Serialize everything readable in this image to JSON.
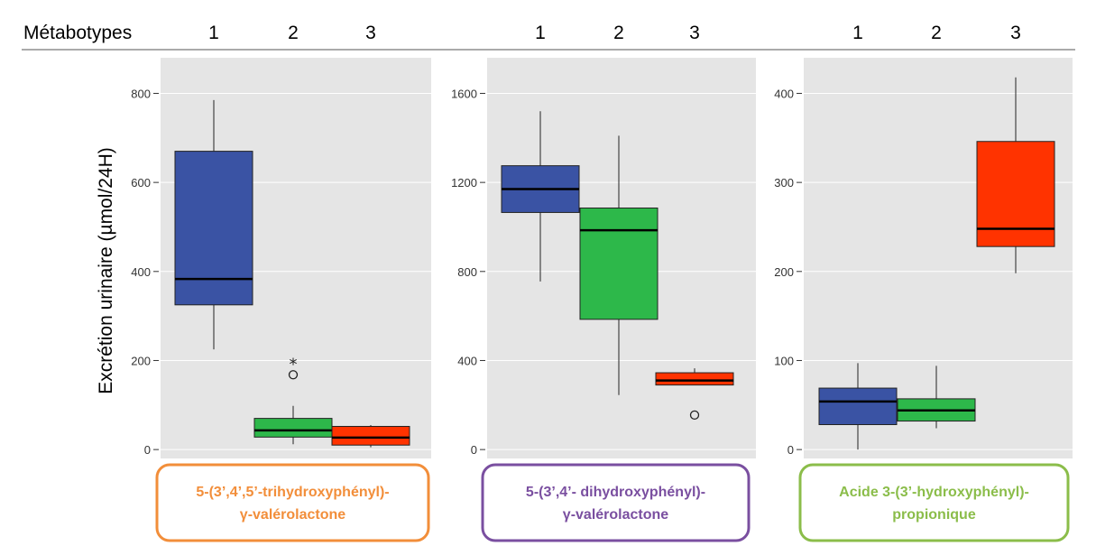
{
  "header": {
    "label": "Métabotypes",
    "groups": [
      "1",
      "2",
      "3"
    ]
  },
  "y_axis_label": "Excrétion urinaire (µmol/24H)",
  "colors": {
    "group1": "#3a53a4",
    "group2": "#2db84a",
    "group3": "#ff3300",
    "panel_bg": "#e5e5e5",
    "grid": "#ffffff"
  },
  "chart_data": [
    {
      "type": "boxplot",
      "categories": [
        "1",
        "2",
        "3"
      ],
      "ylim": [
        -20,
        880
      ],
      "yticks": [
        0,
        200,
        400,
        600,
        800
      ],
      "caption_lines": [
        "5-(3’,4’,5’-trihydroxyphényl)-",
        "γ-valérolactone"
      ],
      "caption_color": "#f28e3a",
      "boxes": [
        {
          "group": "1",
          "min": 225,
          "q1": 325,
          "median": 383,
          "q3": 670,
          "max": 785
        },
        {
          "group": "2",
          "min": 12,
          "q1": 28,
          "median": 43,
          "q3": 70,
          "max": 98
        },
        {
          "group": "3",
          "min": 5,
          "q1": 10,
          "median": 27,
          "q3": 52,
          "max": 55
        }
      ],
      "outliers": [
        {
          "group": "2",
          "value": 168,
          "marker": "circle"
        },
        {
          "group": "2",
          "value": 198,
          "marker": "star"
        }
      ]
    },
    {
      "type": "boxplot",
      "categories": [
        "1",
        "2",
        "3"
      ],
      "ylim": [
        -40,
        1760
      ],
      "yticks": [
        0,
        400,
        800,
        1200,
        1600
      ],
      "caption_lines": [
        "5-(3’,4’- dihydroxyphényl)-",
        "γ-valérolactone"
      ],
      "caption_color": "#7a4fa0",
      "boxes": [
        {
          "group": "1",
          "min": 755,
          "q1": 1065,
          "median": 1170,
          "q3": 1275,
          "max": 1520
        },
        {
          "group": "2",
          "min": 245,
          "q1": 585,
          "median": 985,
          "q3": 1085,
          "max": 1410
        },
        {
          "group": "3",
          "min": 290,
          "q1": 290,
          "median": 310,
          "q3": 345,
          "max": 365
        }
      ],
      "outliers": [
        {
          "group": "3",
          "value": 155,
          "marker": "circle"
        }
      ]
    },
    {
      "type": "boxplot",
      "categories": [
        "1",
        "2",
        "3"
      ],
      "ylim": [
        -10,
        440
      ],
      "yticks": [
        0,
        100,
        200,
        300,
        400
      ],
      "caption_lines": [
        "Acide 3-(3’-hydroxyphényl)-",
        "propionique"
      ],
      "caption_color": "#8bbd4a",
      "boxes": [
        {
          "group": "1",
          "min": 0,
          "q1": 28,
          "median": 54,
          "q3": 69,
          "max": 97
        },
        {
          "group": "2",
          "min": 24,
          "q1": 32,
          "median": 44,
          "q3": 57,
          "max": 94
        },
        {
          "group": "3",
          "min": 198,
          "q1": 228,
          "median": 248,
          "q3": 346,
          "max": 418
        }
      ],
      "outliers": []
    }
  ]
}
